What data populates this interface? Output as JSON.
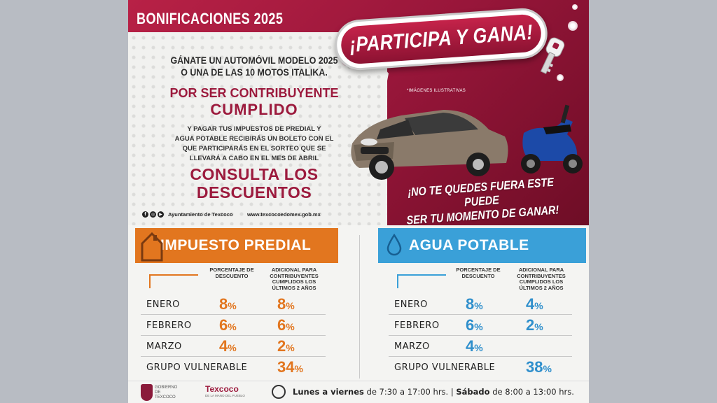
{
  "header": {
    "title": "BONIFICACIONES 2025",
    "badge": "¡PARTICIPA Y GANA!"
  },
  "promo": {
    "lead_line1": "GÁNATE UN AUTOMÓVIL MODELO 2025",
    "lead_line2": "O UNA DE LAS 10 MOTOS ITALIKA.",
    "por_ser": "POR SER CONTRIBUYENTE",
    "cumplido": "CUMPLIDO",
    "body_line1": "Y PAGAR TUS IMPUESTOS DE PREDIAL Y",
    "body_line2": "AGUA POTABLE RECIBIRÁS UN BOLETO CON EL",
    "body_line3": "QUE PARTICIPARÁS EN EL SORTEO QUE SE",
    "body_line4": "LLEVARÁ A CABO EN EL MES DE ABRIL",
    "consulta_line1": "CONSULTA LOS",
    "consulta_line2": "DESCUENTOS",
    "social_label": "Ayuntamiento de Texcoco",
    "website": "www.texcocoedomex.gob.mx",
    "illustrative_note": "*IMÁGENES ILUSTRATIVAS",
    "slogan_line1": "¡NO TE QUEDES FUERA ESTE PUEDE",
    "slogan_line2": "SER TU MOMENTO DE GANAR!"
  },
  "predial": {
    "title": "IMPUESTO PREDIAL",
    "col1": "PORCENTAJE DE DESCUENTO",
    "col2": "ADICIONAL PARA CONTRIBUYENTES CUMPLIDOS LOS ÚLTIMOS 2 AÑOS",
    "rows": [
      {
        "label": "ENERO",
        "discount": "8",
        "extra": "8"
      },
      {
        "label": "FEBRERO",
        "discount": "6",
        "extra": "6"
      },
      {
        "label": "MARZO",
        "discount": "4",
        "extra": "2"
      },
      {
        "label": "GRUPO VULNERABLE",
        "discount": "",
        "extra": "34"
      }
    ],
    "color": "#e2761f"
  },
  "agua": {
    "title": "AGUA POTABLE",
    "col1": "PORCENTAJE DE DESCUENTO",
    "col2": "ADICIONAL PARA CONTRIBUYENTES CUMPLIDOS LOS ÚLTIMOS 2 AÑOS",
    "rows": [
      {
        "label": "ENERO",
        "discount": "8",
        "extra": "4"
      },
      {
        "label": "FEBRERO",
        "discount": "6",
        "extra": "2"
      },
      {
        "label": "MARZO",
        "discount": "4",
        "extra": ""
      },
      {
        "label": "GRUPO VULNERABLE",
        "discount": "",
        "extra": "38"
      }
    ],
    "color": "#3aa0d8"
  },
  "footer": {
    "gob_line1": "GOBIERNO DE",
    "gob_line2": "TEXCOCO",
    "logo_name": "Texcoco",
    "logo_sub": "DE LA MANO DEL PUEBLO",
    "weekdays_label": "Lunes a viernes",
    "weekdays_hours": " de 7:30 a 17:00 hrs.",
    "separator": " | ",
    "saturday_label": "Sábado",
    "saturday_hours": " de 8:00 a 13:00 hrs."
  },
  "percent_sign": "%"
}
